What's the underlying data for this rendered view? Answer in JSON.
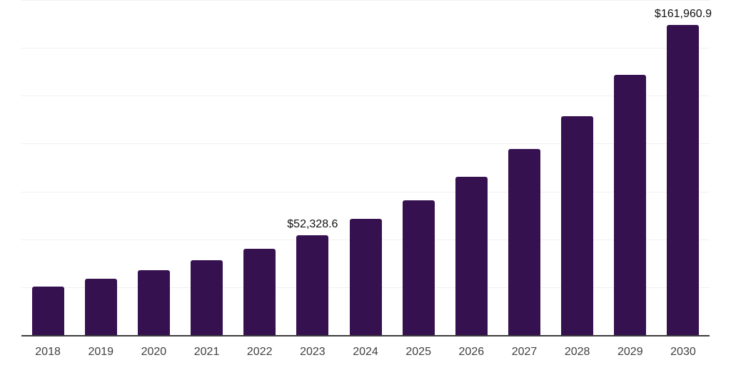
{
  "chart_data": {
    "type": "bar",
    "title": "",
    "xlabel": "",
    "ylabel": "",
    "categories": [
      "2018",
      "2019",
      "2020",
      "2021",
      "2022",
      "2023",
      "2024",
      "2025",
      "2026",
      "2027",
      "2028",
      "2029",
      "2030"
    ],
    "values": [
      25300,
      29400,
      33900,
      39100,
      45000,
      52328.6,
      60700,
      70400,
      82700,
      97200,
      114300,
      135900,
      161960.9
    ],
    "annotations": [
      {
        "category": "2023",
        "text": "$52,328.6"
      },
      {
        "category": "2030",
        "text": "$161,960.9"
      }
    ],
    "ylim": [
      0,
      175000
    ],
    "grid_interval": 25000,
    "grid": "horizontal-only",
    "y_axis_labels": "hidden",
    "legend": "none"
  },
  "style": {
    "bar_color": "#361150",
    "gridline_color": "#f0f0f0",
    "axis_line_color": "#3c3c3c",
    "tick_label_color": "#404040",
    "annotation_color": "#111111",
    "background_color": "#ffffff"
  }
}
